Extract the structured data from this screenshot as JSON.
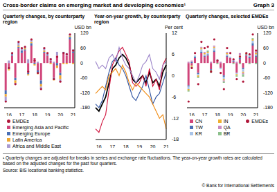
{
  "title": "Cross-border claims on emerging market and developing economies¹",
  "graph_label": "Graph 3",
  "footnote": "¹ Quarterly changes are adjusted for breaks in series and exchange rate fluctuations. The year-on-year growth rates are calculated based on the adjusted changes for the past four quarters.",
  "source": "Source: BIS locational banking statistics.",
  "copyright": "© Bank for International Settlements",
  "chart_data": [
    {
      "type": "bar",
      "title": "Quarterly changes, by counterparty region",
      "y_label": "USD bn",
      "stacked": true,
      "grid": false,
      "legend": "bottom",
      "categories": [
        null,
        "16",
        null,
        null,
        null,
        "17",
        null,
        null,
        null,
        "18",
        null,
        null,
        null,
        "19",
        null,
        null,
        null,
        "20",
        null,
        null,
        null,
        "21"
      ],
      "ylim": [
        -180,
        120
      ],
      "yticks": [
        -180,
        -120,
        -60,
        0,
        60,
        120
      ],
      "series": [
        {
          "name": "EMDEs",
          "type": "scatter",
          "marker": "circle",
          "color": "#b0173a",
          "values": [
            -155,
            -20,
            40,
            -85,
            85,
            60,
            65,
            -35,
            95,
            10,
            -40,
            -105,
            60,
            40,
            15,
            -65,
            25,
            -75,
            40,
            35,
            115,
            50
          ]
        },
        {
          "name": "Emerging Asia and Pacific",
          "color": "#d0457a",
          "values": [
            -110,
            -20,
            30,
            -60,
            60,
            40,
            50,
            -40,
            70,
            20,
            -30,
            -70,
            40,
            30,
            10,
            -60,
            30,
            -40,
            40,
            30,
            95,
            40
          ]
        },
        {
          "name": "Emerging Europe",
          "color": "#4a6fb5",
          "values": [
            -15,
            -5,
            5,
            -10,
            5,
            10,
            5,
            -5,
            10,
            -5,
            -10,
            -15,
            5,
            5,
            0,
            -5,
            -10,
            -10,
            5,
            0,
            10,
            5
          ]
        },
        {
          "name": "Latin America",
          "color": "#f0a830",
          "values": [
            -10,
            -5,
            0,
            -10,
            5,
            0,
            5,
            -5,
            5,
            -5,
            -5,
            -10,
            5,
            0,
            -5,
            -5,
            -10,
            -15,
            -5,
            -5,
            5,
            -5
          ]
        },
        {
          "name": "Africa and Middle East",
          "color": "#a99ad0",
          "values": [
            -20,
            10,
            5,
            -5,
            15,
            10,
            5,
            15,
            10,
            0,
            5,
            -10,
            10,
            5,
            10,
            5,
            15,
            -10,
            0,
            10,
            5,
            10
          ]
        }
      ]
    },
    {
      "type": "line",
      "title": "Year-on-year growth, by counterparty region",
      "y_label": "Per cent",
      "grid": false,
      "categories": [
        null,
        "16",
        null,
        null,
        null,
        "17",
        null,
        null,
        null,
        "18",
        null,
        null,
        null,
        "19",
        null,
        null,
        null,
        "20",
        null,
        null,
        null,
        "21"
      ],
      "ylim": [
        -18,
        12
      ],
      "yticks": [
        -18,
        -12,
        -6,
        0,
        6,
        12
      ],
      "series": [
        {
          "name": "EMDEs",
          "color": "#000000",
          "line_style": "solid",
          "values": [
            -9,
            -10,
            -8,
            -6,
            -2,
            2,
            3,
            5,
            6,
            5,
            3,
            -1,
            -2,
            -1,
            0,
            -2,
            1,
            -2,
            -1,
            -3,
            1,
            3
          ]
        },
        {
          "name": "Emerging Asia and Pacific",
          "color": "#d0103a",
          "line_style": "solid",
          "values": [
            -15,
            -16,
            -13,
            -11,
            -4,
            3,
            5,
            7,
            8,
            6,
            4,
            -2,
            -3,
            -2,
            0,
            -3,
            2,
            -3,
            -1,
            -4,
            3,
            5
          ]
        },
        {
          "name": "Emerging Europe",
          "color": "#2a4f9e",
          "line_style": "solid",
          "values": [
            -8,
            -9,
            -7,
            -3,
            1,
            4,
            5,
            3,
            2,
            0,
            -3,
            -6,
            -7,
            -5,
            -3,
            0,
            -4,
            -8,
            -6,
            -5,
            -2,
            1
          ]
        },
        {
          "name": "Latin America",
          "color": "#f08a10",
          "line_style": "solid",
          "values": [
            -5,
            -4,
            -3,
            -4,
            0,
            1,
            2,
            0,
            3,
            1,
            -2,
            -4,
            -2,
            -3,
            -4,
            -5,
            -6,
            -8,
            -10,
            -12,
            -11,
            -15
          ]
        },
        {
          "name": "Africa and Middle East",
          "color": "#9a82c8",
          "line_style": "solid",
          "values": [
            4,
            2,
            3,
            2,
            5,
            6,
            4,
            8,
            5,
            3,
            2,
            0,
            -2,
            0,
            3,
            4,
            6,
            2,
            1,
            -1,
            3,
            4
          ]
        }
      ]
    },
    {
      "type": "bar",
      "title": "Quarterly changes, selected EMDEs",
      "y_label": "USD bn",
      "stacked": true,
      "grid": false,
      "legend": "bottom",
      "categories": [
        null,
        "16",
        null,
        null,
        null,
        "17",
        null,
        null,
        null,
        "18",
        null,
        null,
        null,
        "19",
        null,
        null,
        null,
        "20",
        null,
        null,
        null,
        "21"
      ],
      "ylim": [
        -180,
        120
      ],
      "yticks": [
        -180,
        -120,
        -60,
        0,
        60,
        120
      ],
      "series": [
        {
          "name": "CN",
          "color": "#d0457a",
          "values": [
            -90,
            -10,
            20,
            -40,
            40,
            25,
            30,
            -25,
            45,
            10,
            -20,
            -50,
            25,
            20,
            5,
            -40,
            15,
            -20,
            30,
            20,
            70,
            25
          ]
        },
        {
          "name": "TW",
          "color": "#4a6fb5",
          "values": [
            -5,
            5,
            5,
            -5,
            5,
            5,
            5,
            -5,
            5,
            0,
            0,
            -5,
            5,
            0,
            5,
            0,
            5,
            -5,
            5,
            5,
            10,
            5
          ]
        },
        {
          "name": "KR",
          "color": "#a9c4e8",
          "values": [
            -10,
            0,
            5,
            -5,
            10,
            5,
            5,
            0,
            10,
            5,
            -5,
            -10,
            5,
            5,
            0,
            -5,
            5,
            -10,
            0,
            5,
            10,
            5
          ]
        },
        {
          "name": "IN",
          "color": "#f0b030",
          "values": [
            -5,
            -5,
            0,
            -5,
            5,
            5,
            5,
            -5,
            5,
            0,
            0,
            -5,
            5,
            0,
            0,
            -5,
            5,
            -5,
            5,
            0,
            5,
            5
          ]
        },
        {
          "name": "QA",
          "color": "#c98ac0",
          "values": [
            5,
            5,
            0,
            0,
            5,
            5,
            0,
            5,
            5,
            0,
            5,
            -5,
            5,
            0,
            5,
            5,
            10,
            -5,
            0,
            5,
            0,
            5
          ]
        },
        {
          "name": "BR",
          "color": "#8cc08c",
          "values": [
            -5,
            -5,
            0,
            -5,
            0,
            0,
            5,
            -5,
            0,
            -5,
            0,
            -5,
            0,
            0,
            -5,
            -5,
            -5,
            -10,
            0,
            -5,
            5,
            -5
          ]
        },
        {
          "name": "EMDEs",
          "type": "scatter",
          "marker": "circle",
          "color": "#b0173a",
          "values": [
            -155,
            -20,
            40,
            -85,
            85,
            60,
            65,
            -35,
            95,
            10,
            -40,
            -105,
            60,
            40,
            15,
            -65,
            25,
            -75,
            40,
            35,
            115,
            50
          ]
        }
      ]
    }
  ]
}
